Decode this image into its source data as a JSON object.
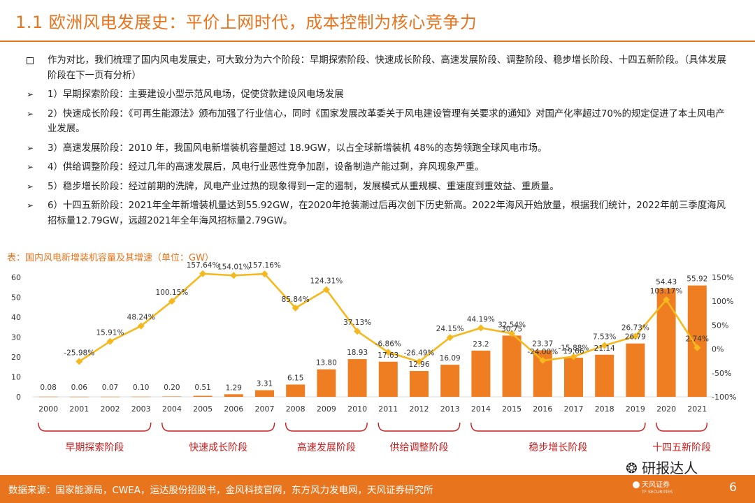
{
  "slide": {
    "title": "1.1 欧洲风电发展史：平价上网时代，成本控制为核心竞争力",
    "page_number": "6"
  },
  "bullets": {
    "intro": "作为对比，我们梳理了国内风电发展史，可大致分为六个阶段：早期探索阶段、快速成长阶段、高速发展阶段、调整阶段、稳步增长阶段、十四五新阶段。（具体发展阶段在下一页有分析）",
    "items": [
      "1）早期探索阶段：主要建设小型示范风电场，促使贷款建设风电场发展",
      "2）快速成长阶段：《可再生能源法》颁布加强了行业信心，同时《国家发展改革委关于风电建设管理有关要求的通知》对国产化率超过70%的规定促进了本土风电产业发展。",
      "3）高速发展阶段：2010 年，我国风电新增装机容量超过 18.9GW，以占全球新增装机 48%的态势领跑全球风电市场。",
      "4）供给调整阶段：经过几年的高速发展后，风电行业恶性竞争加剧，设备制造产能过剩，弃风现象严重。",
      "5）稳步增长阶段：经过前期的洗牌，风电产业过热的现象得到一定的遏制，发展模式从重规模、重速度到重效益、重质量。",
      "6）十四五新阶段：2021年全年新增装机量达到55.92GW，在2020年抢装潮过后再次创下历史新高。2022年海风开始放量，根据我们统计，2022年前三季度海风招标量12.79GW，远超2021年全年海风招标量2.79GW。"
    ]
  },
  "chart_title": "表：国内风电新增装机容量及其增速（单位：GW）",
  "chart_data": {
    "type": "bar",
    "title": "国内风电新增装机容量及其增速（单位：GW）",
    "categories": [
      "2000",
      "2001",
      "2002",
      "2003",
      "2004",
      "2005",
      "2006",
      "2007",
      "2008",
      "2009",
      "2010",
      "2011",
      "2012",
      "2013",
      "2014",
      "2015",
      "2016",
      "2017",
      "2018",
      "2019",
      "2020",
      "2021"
    ],
    "series": [
      {
        "name": "新增装机容量",
        "type": "bar",
        "axis": "left",
        "values": [
          0.08,
          0.06,
          0.07,
          0.1,
          0.2,
          0.51,
          1.29,
          3.31,
          6.15,
          13.8,
          18.93,
          17.63,
          12.96,
          16.09,
          23.2,
          30.75,
          23.37,
          19.66,
          21.14,
          26.79,
          54.43,
          55.92
        ],
        "labels": [
          "0.08",
          "0.06",
          "0.07",
          "0.10",
          "0.20",
          "0.51",
          "1.29",
          "3.31",
          "6.15",
          "13.80",
          "18.93",
          "17.63",
          "12.96",
          "16.09",
          "23.2",
          "30.75",
          "23.37",
          "19.66",
          "21.14",
          "26.79",
          "54.43",
          "55.92"
        ]
      },
      {
        "name": "增速",
        "type": "line",
        "axis": "right",
        "values": [
          null,
          -25.98,
          15.91,
          48.24,
          100.15,
          157.64,
          154.01,
          157.16,
          85.84,
          124.31,
          37.13,
          -6.86,
          -26.49,
          24.15,
          44.19,
          32.54,
          -24.0,
          -15.88,
          7.53,
          26.73,
          103.17,
          2.74
        ],
        "labels": [
          "",
          "-25.98%",
          "15.91%",
          "48.24%",
          "100.15%",
          "157.64%",
          "154.01%",
          "157.16%",
          "85.84%",
          "124.31%",
          "37.13%",
          "-6.86%",
          "-26.49%",
          "24.15%",
          "44.19%",
          "32.54%",
          "-24.00%",
          "-15.88%",
          "7.53%",
          "26.73%",
          "103.17%",
          "2.74%"
        ]
      }
    ],
    "ylim": [
      0,
      60
    ],
    "y_ticks": [
      "0",
      "10",
      "20",
      "30",
      "40",
      "50",
      "60"
    ],
    "y2lim": [
      -100,
      150
    ],
    "y2_ticks": [
      "-100%",
      "-50%",
      "0%",
      "50%",
      "100%",
      "150%"
    ],
    "stages": [
      {
        "label": "早期探索阶段",
        "from": 0,
        "to": 3
      },
      {
        "label": "快速成长阶段",
        "from": 4,
        "to": 7
      },
      {
        "label": "高速发展阶段",
        "from": 8,
        "to": 10
      },
      {
        "label": "供给调整阶段",
        "from": 11,
        "to": 13
      },
      {
        "label": "稳步增长阶段",
        "from": 14,
        "to": 19
      },
      {
        "label": "十四五新阶段",
        "from": 20,
        "to": 21
      }
    ],
    "colors": {
      "bar": "#ef7d22",
      "line": "#f6b81f",
      "stage": "#c81e1e"
    }
  },
  "footer": {
    "source": "数据来源：国家能源局，CWEA，运达股份招股书，金风科技官网，东方风力发电网，天风证券研究所",
    "watermark": "研报达人",
    "logo_text": "天风证券",
    "logo_sub": "TF SECURITIES"
  }
}
